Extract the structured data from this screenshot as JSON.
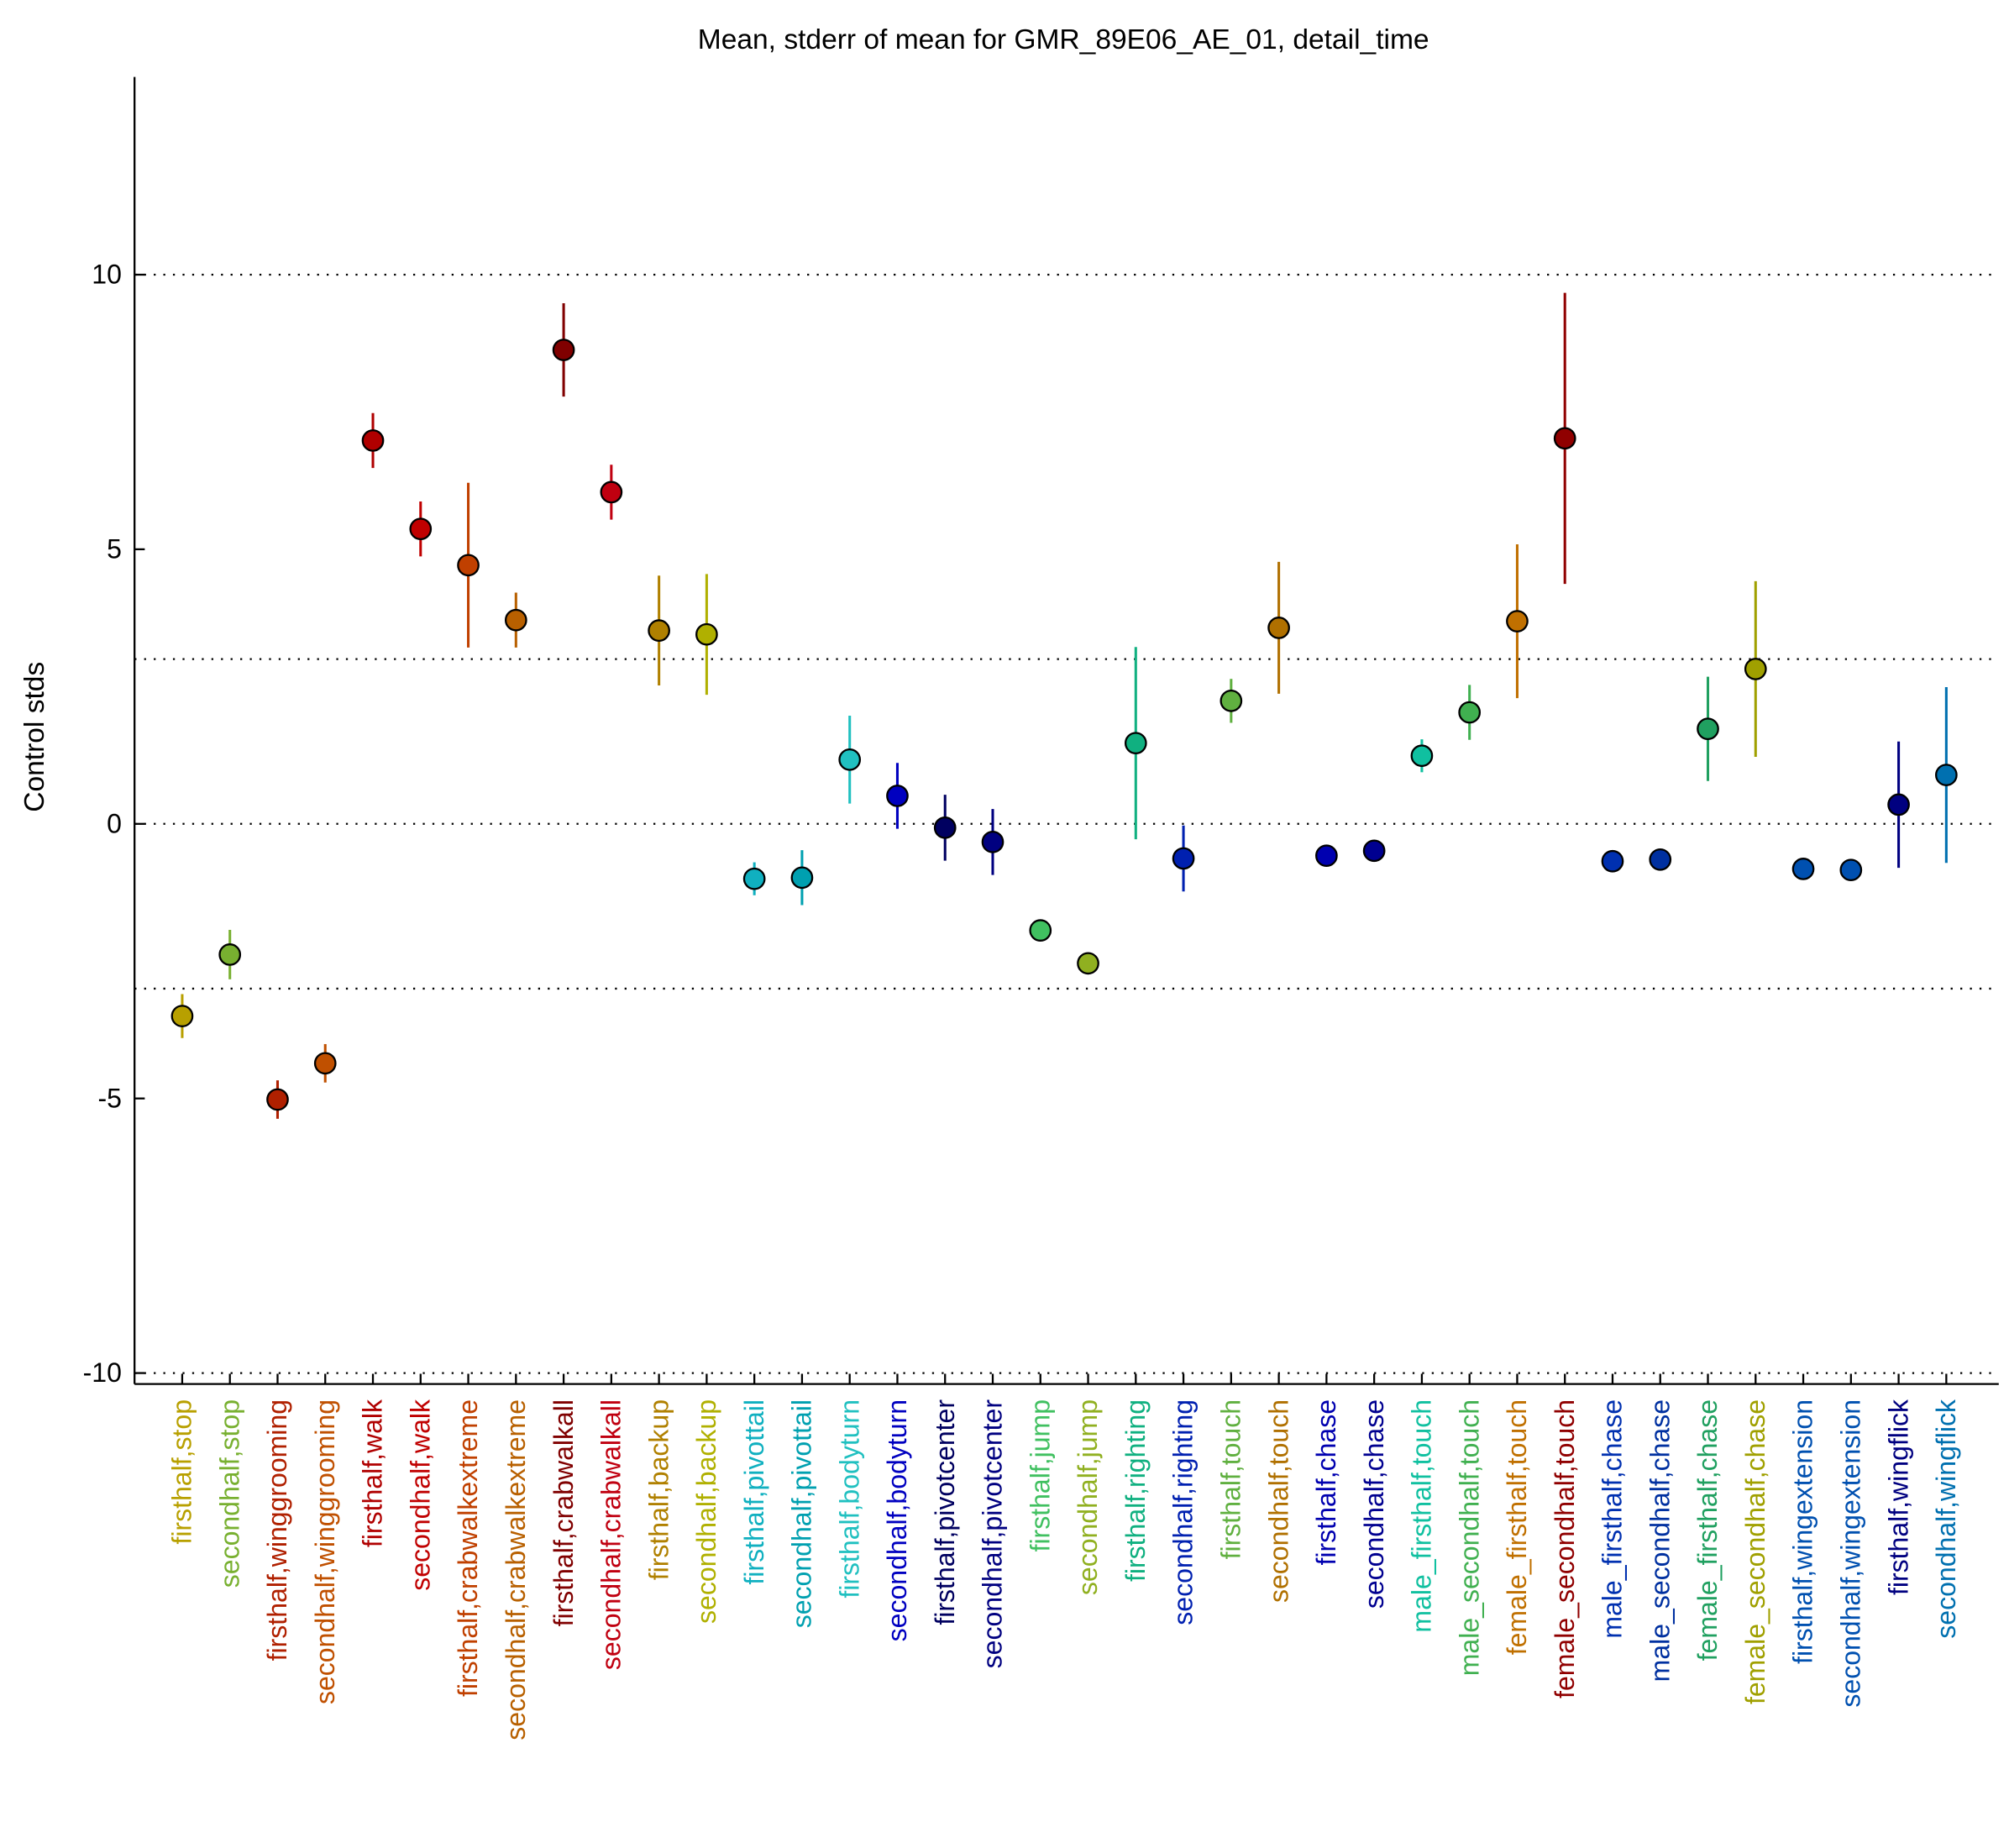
{
  "chart_data": {
    "type": "errorbar",
    "title": "Mean, stderr of mean for GMR_89E06_AE_01, detail_time",
    "ylabel": "Control stds",
    "categories": [
      "firsthalf,stop",
      "secondhalf,stop",
      "firsthalf,winggrooming",
      "secondhalf,winggrooming",
      "firsthalf,walk",
      "secondhalf,walk",
      "firsthalf,crabwalkextreme",
      "secondhalf,crabwalkextreme",
      "firsthalf,crabwalkall",
      "secondhalf,crabwalkall",
      "firsthalf,backup",
      "secondhalf,backup",
      "firsthalf,pivottail",
      "secondhalf,pivottail",
      "firsthalf,bodyturn",
      "secondhalf,bodyturn",
      "firsthalf,pivotcenter",
      "secondhalf,pivotcenter",
      "firsthalf,jump",
      "secondhalf,jump",
      "firsthalf,righting",
      "secondhalf,righting",
      "firsthalf,touch",
      "secondhalf,touch",
      "firsthalf,chase",
      "secondhalf,chase",
      "male_firsthalf,touch",
      "male_secondhalf,touch",
      "female_firsthalf,touch",
      "female_secondhalf,touch",
      "male_firsthalf,chase",
      "male_secondhalf,chase",
      "female_firsthalf,chase",
      "female_secondhalf,chase",
      "firsthalf,wingextension",
      "secondhalf,wingextension",
      "firsthalf,wingflick",
      "secondhalf,wingflick"
    ],
    "values": [
      -3.5,
      -2.38,
      -5.02,
      -4.36,
      6.98,
      5.37,
      4.71,
      3.71,
      8.63,
      6.04,
      3.52,
      3.45,
      -1.0,
      -0.98,
      1.17,
      0.51,
      -0.07,
      -0.33,
      -1.94,
      -2.54,
      1.47,
      -0.63,
      2.24,
      3.57,
      -0.58,
      -0.49,
      1.24,
      2.03,
      3.69,
      7.02,
      -0.68,
      -0.65,
      1.73,
      2.82,
      -0.82,
      -0.84,
      0.35,
      0.89
    ],
    "errors": [
      0.4,
      0.45,
      0.35,
      0.35,
      0.5,
      0.5,
      1.5,
      0.5,
      0.85,
      0.5,
      1.0,
      1.1,
      0.3,
      0.5,
      0.8,
      0.6,
      0.6,
      0.6,
      0.15,
      0.1,
      1.75,
      0.6,
      0.4,
      1.2,
      0.1,
      0.1,
      0.3,
      0.5,
      1.4,
      2.65,
      0.1,
      0.1,
      0.95,
      1.6,
      0.1,
      0.1,
      1.15,
      1.6
    ],
    "colors": [
      "#b8a000",
      "#78b030",
      "#b02000",
      "#c05000",
      "#b00000",
      "#c00000",
      "#c04000",
      "#b86000",
      "#800000",
      "#c00010",
      "#b08000",
      "#b0b000",
      "#10b0c0",
      "#00a0b0",
      "#20c0c0",
      "#0000c0",
      "#000060",
      "#000080",
      "#40c060",
      "#90b020",
      "#10b080",
      "#0020b0",
      "#60b040",
      "#b07000",
      "#0000b0",
      "#000090",
      "#10c0a0",
      "#40b050",
      "#c07000",
      "#900000",
      "#0030b0",
      "#0030a0",
      "#20a060",
      "#a0a000",
      "#0050b0",
      "#0050b0",
      "#000080",
      "#0070b0"
    ],
    "ylim": [
      -10.2,
      13.6
    ],
    "yticks": [
      -10,
      -5,
      0,
      5,
      10
    ],
    "reference_lines": [
      -10,
      -3,
      0,
      3,
      10
    ]
  }
}
